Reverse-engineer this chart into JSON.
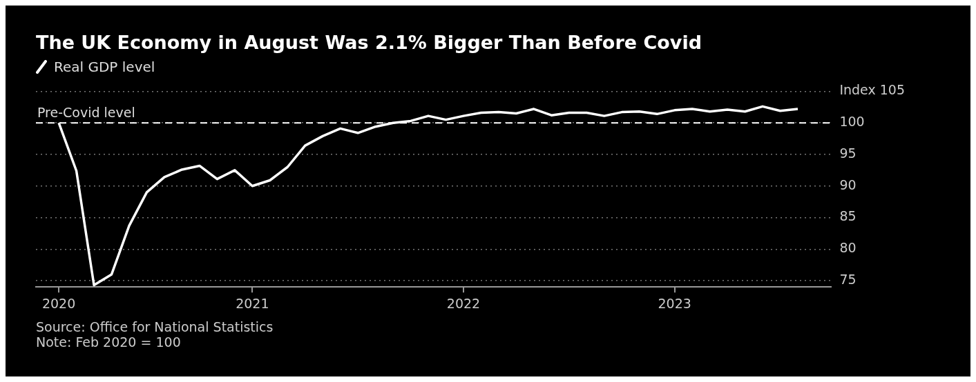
{
  "chart_data": {
    "type": "line",
    "title": "The UK Economy in August Was 2.1% Bigger Than Before Covid",
    "x": [
      "2020-02",
      "2020-03",
      "2020-04",
      "2020-05",
      "2020-06",
      "2020-07",
      "2020-08",
      "2020-09",
      "2020-10",
      "2020-11",
      "2020-12",
      "2021-01",
      "2021-02",
      "2021-03",
      "2021-04",
      "2021-05",
      "2021-06",
      "2021-07",
      "2021-08",
      "2021-09",
      "2021-10",
      "2021-11",
      "2021-12",
      "2022-01",
      "2022-02",
      "2022-03",
      "2022-04",
      "2022-05",
      "2022-06",
      "2022-07",
      "2022-08",
      "2022-09",
      "2022-10",
      "2022-11",
      "2022-12",
      "2023-01",
      "2023-02",
      "2023-03",
      "2023-04",
      "2023-05",
      "2023-06",
      "2023-07",
      "2023-08"
    ],
    "series": [
      {
        "name": "Real GDP level",
        "color": "#ffffff",
        "values": [
          100,
          92.4,
          74.3,
          76.0,
          83.7,
          89.0,
          91.4,
          92.6,
          93.2,
          91.1,
          92.5,
          90.0,
          90.9,
          93.0,
          96.4,
          97.9,
          99.1,
          98.4,
          99.4,
          100.0,
          100.3,
          101.1,
          100.5,
          101.1,
          101.6,
          101.7,
          101.5,
          102.2,
          101.2,
          101.6,
          101.6,
          101.1,
          101.7,
          101.8,
          101.4,
          102.0,
          102.2,
          101.8,
          102.1,
          101.8,
          102.6,
          101.9,
          102.2
        ]
      }
    ],
    "xlim": [
      "2019-12-22",
      "2023-09-28"
    ],
    "xticks": [
      {
        "value": "2020-02",
        "label": "2020"
      },
      {
        "value": "2021",
        "label": "2021"
      },
      {
        "value": "2022",
        "label": "2022"
      },
      {
        "value": "2023",
        "label": "2023"
      }
    ],
    "ylim": [
      74,
      105
    ],
    "yticks": [
      75,
      80,
      85,
      90,
      95,
      100,
      {
        "value": 105,
        "label": "Index 105"
      }
    ],
    "ref_lines": [
      {
        "axis": "y",
        "value": 100,
        "label": "Pre-Covid level",
        "line_style": "dashed",
        "color": "#ffffff"
      }
    ],
    "grid": "y",
    "legend": "top left",
    "marker": "none",
    "line_style": "solid",
    "annotations": [
      "Source: Office for National Statistics",
      "Note: Feb 2020 = 100"
    ]
  }
}
